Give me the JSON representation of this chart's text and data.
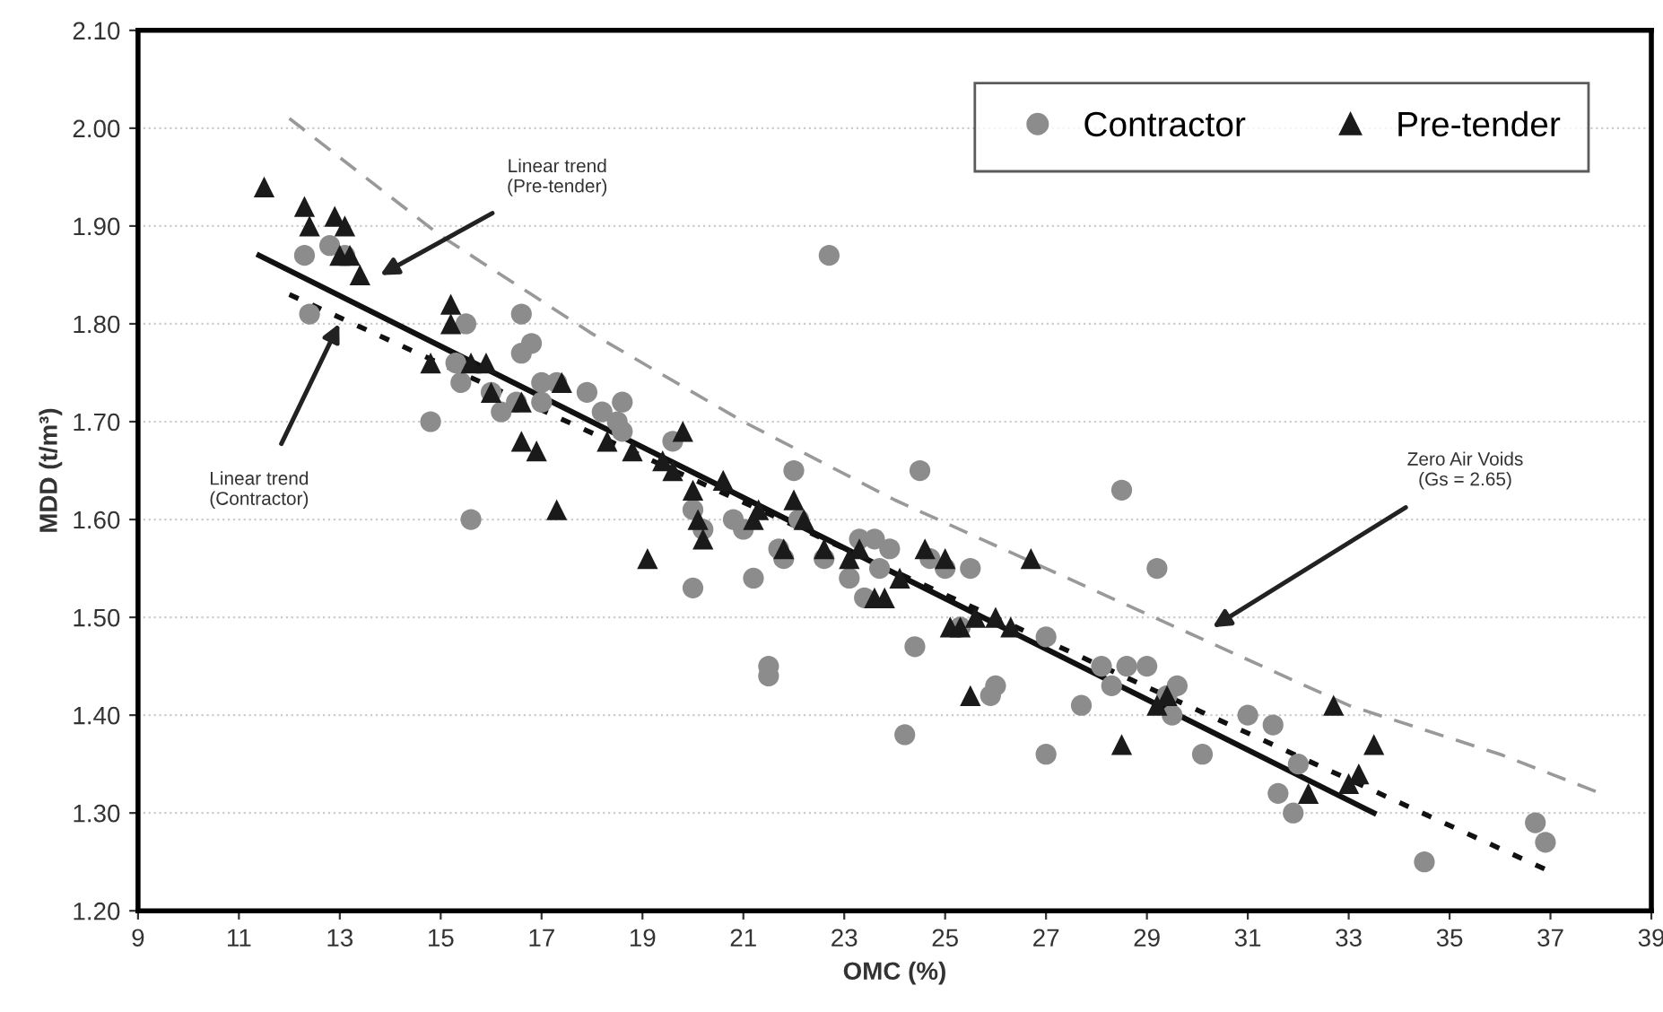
{
  "chart_data": {
    "type": "scatter",
    "xlabel": "OMC (%)",
    "ylabel": "MDD (t/m³)",
    "xlim": [
      9,
      39
    ],
    "xticks": [
      9,
      11,
      13,
      15,
      17,
      19,
      21,
      23,
      25,
      27,
      29,
      31,
      33,
      35,
      37,
      39
    ],
    "ylim": [
      1.2,
      2.1
    ],
    "yticks": [
      {
        "value": 1.2,
        "label": "1.20"
      },
      {
        "value": 1.3,
        "label": "1.30"
      },
      {
        "value": 1.4,
        "label": "1.40"
      },
      {
        "value": 1.5,
        "label": "1.50"
      },
      {
        "value": 1.6,
        "label": "1.60"
      },
      {
        "value": 1.7,
        "label": "1.70"
      },
      {
        "value": 1.8,
        "label": "1.80"
      },
      {
        "value": 1.9,
        "label": "1.90"
      },
      {
        "value": 2.0,
        "label": "2.00"
      },
      {
        "value": 2.1,
        "label": "2.10"
      }
    ],
    "grid": "y",
    "legend": "top right",
    "series": [
      {
        "name": "Contractor",
        "marker": "circle",
        "color": "#8c8c8c",
        "x": [
          12.3,
          12.4,
          12.8,
          13.1,
          14.8,
          15.3,
          15.5,
          15.4,
          15.6,
          16.0,
          16.2,
          16.6,
          16.8,
          16.6,
          16.5,
          17.0,
          17.0,
          17.3,
          17.9,
          18.2,
          18.5,
          18.6,
          18.6,
          19.6,
          20.0,
          20.0,
          20.2,
          20.8,
          21.0,
          21.2,
          21.5,
          21.5,
          21.7,
          21.8,
          22.0,
          22.1,
          22.7,
          22.6,
          23.1,
          23.3,
          23.4,
          23.6,
          23.7,
          23.9,
          24.2,
          24.4,
          24.5,
          24.7,
          25.0,
          25.3,
          25.5,
          25.9,
          26.0,
          27.0,
          27.0,
          27.7,
          28.1,
          28.3,
          28.5,
          28.6,
          29.0,
          29.2,
          29.5,
          29.6,
          29.4,
          30.1,
          31.0,
          31.5,
          31.6,
          31.9,
          32.0,
          34.5,
          36.7,
          36.9
        ],
        "values": [
          1.87,
          1.81,
          1.88,
          1.87,
          1.7,
          1.76,
          1.8,
          1.74,
          1.6,
          1.73,
          1.71,
          1.81,
          1.78,
          1.77,
          1.72,
          1.74,
          1.72,
          1.74,
          1.73,
          1.71,
          1.7,
          1.72,
          1.69,
          1.68,
          1.61,
          1.53,
          1.59,
          1.6,
          1.59,
          1.54,
          1.45,
          1.44,
          1.57,
          1.56,
          1.65,
          1.6,
          1.87,
          1.56,
          1.54,
          1.58,
          1.52,
          1.58,
          1.55,
          1.57,
          1.38,
          1.47,
          1.65,
          1.56,
          1.55,
          1.49,
          1.55,
          1.42,
          1.43,
          1.36,
          1.48,
          1.41,
          1.45,
          1.43,
          1.63,
          1.45,
          1.45,
          1.55,
          1.4,
          1.43,
          1.42,
          1.36,
          1.4,
          1.39,
          1.32,
          1.3,
          1.35,
          1.25,
          1.29,
          1.27
        ]
      },
      {
        "name": "Pre-tender",
        "marker": "triangle",
        "color": "#1a1a1a",
        "x": [
          11.5,
          12.3,
          12.4,
          12.9,
          13.1,
          13.0,
          13.2,
          13.4,
          14.8,
          15.2,
          15.2,
          15.6,
          15.9,
          16.0,
          16.6,
          16.9,
          16.6,
          17.3,
          17.4,
          18.3,
          18.8,
          19.1,
          19.4,
          19.6,
          19.8,
          20.0,
          20.1,
          20.2,
          20.6,
          21.2,
          21.3,
          21.8,
          22.0,
          22.2,
          22.6,
          23.1,
          23.3,
          23.6,
          23.8,
          24.1,
          24.6,
          25.0,
          25.1,
          25.3,
          25.5,
          25.6,
          26.0,
          26.3,
          26.7,
          28.5,
          29.2,
          29.4,
          32.2,
          32.7,
          33.0,
          33.2,
          33.5
        ],
        "values": [
          1.94,
          1.92,
          1.9,
          1.91,
          1.9,
          1.87,
          1.87,
          1.85,
          1.76,
          1.82,
          1.8,
          1.76,
          1.76,
          1.73,
          1.68,
          1.67,
          1.72,
          1.61,
          1.74,
          1.68,
          1.67,
          1.56,
          1.66,
          1.65,
          1.69,
          1.63,
          1.6,
          1.58,
          1.64,
          1.6,
          1.61,
          1.57,
          1.62,
          1.6,
          1.57,
          1.56,
          1.57,
          1.52,
          1.52,
          1.54,
          1.57,
          1.56,
          1.49,
          1.49,
          1.42,
          1.5,
          1.5,
          1.49,
          1.56,
          1.37,
          1.41,
          1.42,
          1.32,
          1.41,
          1.33,
          1.34,
          1.37
        ]
      },
      {
        "type": "line",
        "line_style": "solid",
        "marker": "none",
        "color": "#111111",
        "x": [
          11.4,
          33.5
        ],
        "values": [
          1.87,
          1.3
        ]
      },
      {
        "type": "line",
        "line_style": "dotted",
        "marker": "none",
        "color": "#111111",
        "x": [
          12.0,
          37.0
        ],
        "values": [
          1.83,
          1.24
        ]
      },
      {
        "type": "line",
        "line_style": "dashed",
        "marker": "none",
        "color": "#999999",
        "x": [
          12,
          15,
          18,
          21,
          24,
          27,
          30,
          33,
          36,
          38
        ],
        "values": [
          2.01,
          1.89,
          1.79,
          1.7,
          1.62,
          1.55,
          1.48,
          1.41,
          1.36,
          1.32
        ]
      }
    ],
    "annotations": [
      "Linear trend\n(Pre-tender)",
      "Linear trend\n(Contractor)",
      "Zero Air Voids\n(Gs = 2.65)"
    ]
  }
}
